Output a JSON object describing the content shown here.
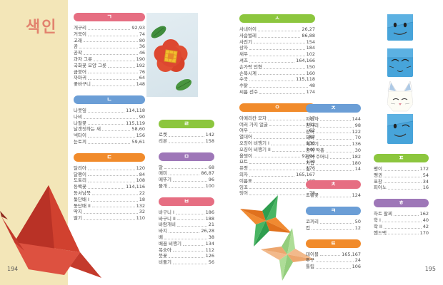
{
  "page": {
    "title": "색인",
    "left_page_number": "194",
    "right_page_number": "195"
  },
  "colors": {
    "section_red": "#e66e82",
    "section_blue": "#6b9ed6",
    "section_orange": "#f18b2b",
    "section_green": "#8cc63e",
    "section_purple": "#9e77b8",
    "sidebar_cream": "#f3e6b8",
    "title_color": "#e2826e"
  },
  "images": [
    {
      "name": "origami-camellia-photo"
    },
    {
      "name": "origami-crane-photo"
    },
    {
      "name": "origami-shuriken-photo"
    },
    {
      "name": "origami-face-smile-photo"
    },
    {
      "name": "origami-face-sleepy-photo"
    },
    {
      "name": "origami-face-rabbit-photo"
    },
    {
      "name": "origami-face-wink-photo"
    }
  ],
  "sections": [
    {
      "key": "g",
      "letter": "ㄱ",
      "color": "#e66e82",
      "entries": [
        {
          "label": "개구리",
          "pages": "92,93"
        },
        {
          "label": "거북이",
          "pages": "74"
        },
        {
          "label": "고래",
          "pages": "80"
        },
        {
          "label": "곰",
          "pages": "36"
        },
        {
          "label": "공작",
          "pages": "46"
        },
        {
          "label": "과자 그릇",
          "pages": "190"
        },
        {
          "label": "국화꽃 모양 그릇",
          "pages": "192"
        },
        {
          "label": "금붕어",
          "pages": "76"
        },
        {
          "label": "까마귀",
          "pages": "64"
        },
        {
          "label": "꽃바구니",
          "pages": "148"
        }
      ]
    },
    {
      "key": "n",
      "letter": "ㄴ",
      "color": "#6b9ed6",
      "entries": [
        {
          "label": "나뭇잎",
          "pages": "114,118"
        },
        {
          "label": "나비",
          "pages": "90"
        },
        {
          "label": "나팔꽃",
          "pages": "115,119"
        },
        {
          "label": "날갯짓하는 새",
          "pages": "58,60"
        },
        {
          "label": "넥타이",
          "pages": "156"
        },
        {
          "label": "눈토끼",
          "pages": "59,61"
        }
      ]
    },
    {
      "key": "d",
      "letter": "ㄷ",
      "color": "#f18b2b",
      "entries": [
        {
          "label": "달리아",
          "pages": "120"
        },
        {
          "label": "달팽이",
          "pages": "84"
        },
        {
          "label": "도토리",
          "pages": "108"
        },
        {
          "label": "동백꽃",
          "pages": "114,116"
        },
        {
          "label": "동서남북",
          "pages": "22"
        },
        {
          "label": "돛단배 I",
          "pages": "18"
        },
        {
          "label": "돛단배 II",
          "pages": "132"
        },
        {
          "label": "딱지",
          "pages": "32"
        },
        {
          "label": "딸기",
          "pages": "110"
        }
      ]
    },
    {
      "key": "r",
      "letter": "ㄹ",
      "color": "#8cc63e",
      "entries": [
        {
          "label": "로켓",
          "pages": "142"
        },
        {
          "label": "리본",
          "pages": "158"
        }
      ]
    },
    {
      "key": "m",
      "letter": "ㅁ",
      "color": "#9e77b8",
      "entries": [
        {
          "label": "말",
          "pages": "68"
        },
        {
          "label": "매미",
          "pages": "86,87"
        },
        {
          "label": "메뚜기",
          "pages": "96"
        },
        {
          "label": "물개",
          "pages": "100"
        }
      ]
    },
    {
      "key": "b",
      "letter": "ㅂ",
      "color": "#e66e82",
      "entries": [
        {
          "label": "바구니 I",
          "pages": "186"
        },
        {
          "label": "바구니 II",
          "pages": "188"
        },
        {
          "label": "바람개비",
          "pages": "21"
        },
        {
          "label": "바지",
          "pages": "26,28"
        },
        {
          "label": "배",
          "pages": "38"
        },
        {
          "label": "배꼽 비행기",
          "pages": "134"
        },
        {
          "label": "복숭아",
          "pages": "112"
        },
        {
          "label": "붓꽃",
          "pages": "126"
        },
        {
          "label": "비둘기",
          "pages": "56"
        }
      ]
    },
    {
      "key": "s",
      "letter": "ㅅ",
      "color": "#8cc63e",
      "entries": [
        {
          "label": "사내아이",
          "pages": "26,27"
        },
        {
          "label": "사슴벌레",
          "pages": "86,88"
        },
        {
          "label": "사진기",
          "pages": "154"
        },
        {
          "label": "상자",
          "pages": "184"
        },
        {
          "label": "새우",
          "pages": "102"
        },
        {
          "label": "셔츠",
          "pages": "164,166"
        },
        {
          "label": "손가락 인형",
          "pages": "150"
        },
        {
          "label": "손목시계",
          "pages": "160"
        },
        {
          "label": "수국",
          "pages": "115,118"
        },
        {
          "label": "수탉",
          "pages": "48"
        },
        {
          "label": "씨름 선수",
          "pages": "174"
        }
      ]
    },
    {
      "key": "ng",
      "letter": "ㅇ",
      "color": "#f18b2b",
      "entries": [
        {
          "label": "아메리칸 모자",
          "pages": "17"
        },
        {
          "label": "여러 가지 얼굴",
          "pages": "152"
        },
        {
          "label": "여우",
          "pages": "62"
        },
        {
          "label": "열대어",
          "pages": "82"
        },
        {
          "label": "오징어 비행기 I",
          "pages": "138"
        },
        {
          "label": "오징어 비행기 II",
          "pages": "140"
        },
        {
          "label": "올챙이",
          "pages": "92,94"
        },
        {
          "label": "요트",
          "pages": "130"
        },
        {
          "label": "유령",
          "pages": "176"
        },
        {
          "label": "의자",
          "pages": "165,167"
        },
        {
          "label": "이름표",
          "pages": "168"
        },
        {
          "label": "잉꼬",
          "pages": "66"
        },
        {
          "label": "잉어",
          "pages": "78"
        }
      ]
    },
    {
      "key": "j",
      "letter": "ㅈ",
      "color": "#6b9ed6",
      "entries": [
        {
          "label": "자동차",
          "pages": "144"
        },
        {
          "label": "잠자리",
          "pages": "98"
        },
        {
          "label": "장미",
          "pages": "122"
        },
        {
          "label": "제비",
          "pages": "70"
        },
        {
          "label": "제트기",
          "pages": "136"
        },
        {
          "label": "종이 딱총",
          "pages": "30"
        },
        {
          "label": "종이 주머니",
          "pages": "182"
        },
        {
          "label": "지갑",
          "pages": "180"
        },
        {
          "label": "집",
          "pages": "14"
        }
      ]
    },
    {
      "key": "ch",
      "letter": "ㅊ",
      "color": "#e66e82",
      "entries": [
        {
          "label": "초롱꽃",
          "pages": "124"
        }
      ]
    },
    {
      "key": "k",
      "letter": "ㅋ",
      "color": "#6b9ed6",
      "entries": [
        {
          "label": "코끼리",
          "pages": "50"
        },
        {
          "label": "컵",
          "pages": "12"
        }
      ]
    },
    {
      "key": "t",
      "letter": "ㅌ",
      "color": "#f18b2b",
      "entries": [
        {
          "label": "테이블",
          "pages": "165,167"
        },
        {
          "label": "투구",
          "pages": "24"
        },
        {
          "label": "튤립",
          "pages": "106"
        }
      ]
    },
    {
      "key": "p",
      "letter": "ㅍ",
      "color": "#8cc63e",
      "entries": [
        {
          "label": "팽이",
          "pages": "172"
        },
        {
          "label": "펭귄",
          "pages": "54"
        },
        {
          "label": "표창",
          "pages": "34"
        },
        {
          "label": "피아노",
          "pages": "16"
        }
      ]
    },
    {
      "key": "h",
      "letter": "ㅎ",
      "color": "#9e77b8",
      "entries": [
        {
          "label": "하트 팔찌",
          "pages": "162"
        },
        {
          "label": "학 I",
          "pages": "40"
        },
        {
          "label": "학 II",
          "pages": "42"
        },
        {
          "label": "핸드백",
          "pages": "170"
        }
      ]
    }
  ]
}
